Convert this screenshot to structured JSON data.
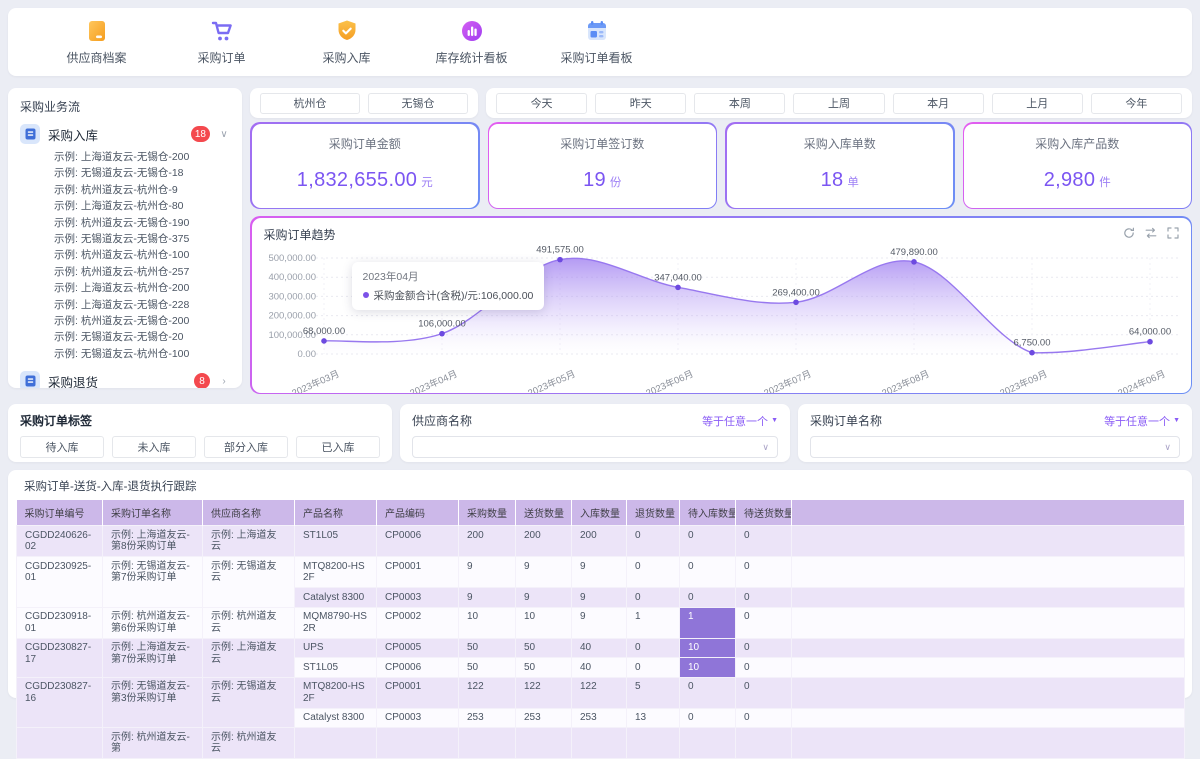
{
  "nav": {
    "items": [
      {
        "label": "供应商档案",
        "icon": "supplier-archive-folder"
      },
      {
        "label": "采购订单",
        "icon": "purchase-order-cart"
      },
      {
        "label": "采购入库",
        "icon": "inbound-shield-check"
      },
      {
        "label": "库存统计看板",
        "icon": "inventory-stats-chart"
      },
      {
        "label": "采购订单看板",
        "icon": "order-board-calendar"
      }
    ]
  },
  "sidebar": {
    "title": "采购业务流",
    "sections": [
      {
        "label": "采购入库",
        "badge": "18",
        "expanded": true,
        "items": [
          "示例: 上海道友云-无锡仓-200",
          "示例: 无锡道友云-无锡仓-18",
          "示例: 杭州道友云-杭州仓-9",
          "示例: 上海道友云-杭州仓-80",
          "示例: 杭州道友云-无锡仓-190",
          "示例: 无锡道友云-无锡仓-375",
          "示例: 杭州道友云-杭州仓-100",
          "示例: 杭州道友云-杭州仓-257",
          "示例: 上海道友云-杭州仓-200",
          "示例: 上海道友云-无锡仓-228",
          "示例: 杭州道友云-无锡仓-200",
          "示例: 无锡道友云-无锡仓-20",
          "示例: 无锡道友云-杭州仓-100"
        ]
      },
      {
        "label": "采购退货",
        "badge": "8",
        "expanded": false,
        "items": []
      }
    ]
  },
  "filters": {
    "warehouses": [
      "杭州仓",
      "无锡仓"
    ],
    "date_ranges": [
      "今天",
      "昨天",
      "本周",
      "上周",
      "本月",
      "上月",
      "今年"
    ]
  },
  "stats": [
    {
      "label": "采购订单金额",
      "value": "1,832,655.00",
      "unit": "元"
    },
    {
      "label": "采购订单签订数",
      "value": "19",
      "unit": "份"
    },
    {
      "label": "采购入库单数",
      "value": "18",
      "unit": "单"
    },
    {
      "label": "采购入库产品数",
      "value": "2,980",
      "unit": "件"
    }
  ],
  "chart": {
    "title": "采购订单趋势",
    "tooltip": {
      "title": "2023年04月",
      "text": "采购金额合计(含税)/元:106,000.00"
    },
    "toolbar_icons": [
      "refresh",
      "restore",
      "fullscreen"
    ]
  },
  "chart_data": {
    "type": "area",
    "title": "采购订单趋势",
    "x": [
      "2023年03月",
      "2023年04月",
      "2023年05月",
      "2023年06月",
      "2023年07月",
      "2023年08月",
      "2023年09月",
      "2024年06月"
    ],
    "series": [
      {
        "name": "采购金额合计(含税)/元",
        "values": [
          68000,
          106000,
          491575,
          347040,
          269400,
          479890,
          6750,
          64000
        ]
      }
    ],
    "ylim": [
      0,
      500000
    ],
    "yticks": [
      500000,
      400000,
      300000,
      200000,
      100000,
      0
    ],
    "grid": true,
    "legend": "none",
    "line_color": "#9878ef",
    "point_color": "#6d4ae0"
  },
  "tag_filter": {
    "title": "采购订单标签",
    "buttons": [
      "待入库",
      "未入库",
      "部分入库",
      "已入库"
    ]
  },
  "supplier_filter": {
    "label": "供应商名称",
    "operator": "等于任意一个",
    "value": ""
  },
  "order_filter": {
    "label": "采购订单名称",
    "operator": "等于任意一个",
    "value": ""
  },
  "table": {
    "title": "采购订单-送货-入库-退货执行跟踪",
    "headers": [
      "采购订单编号",
      "采购订单名称",
      "供应商名称",
      "产品名称",
      "产品编码",
      "采购数量",
      "送货数量",
      "入库数量",
      "退货数量",
      "待入库数量",
      "待送货数量"
    ],
    "groups": [
      {
        "order_no": "CGDD240626-02",
        "order_name": "示例: 上海道友云-第8份采购订单",
        "supplier": "示例: 上海道友云",
        "products": [
          {
            "name": "ST1L05",
            "code": "CP0006",
            "qty": [
              "200",
              "200",
              "200",
              "0",
              "0",
              "0"
            ]
          }
        ]
      },
      {
        "order_no": "CGDD230925-01",
        "order_name": "示例: 无锡道友云-第7份采购订单",
        "supplier": "示例: 无锡道友云",
        "products": [
          {
            "name": "MTQ8200-HS2F",
            "code": "CP0001",
            "qty": [
              "9",
              "9",
              "9",
              "0",
              "0",
              "0"
            ]
          },
          {
            "name": "Catalyst 8300",
            "code": "CP0003",
            "qty": [
              "9",
              "9",
              "9",
              "0",
              "0",
              "0"
            ]
          }
        ]
      },
      {
        "order_no": "CGDD230918-01",
        "order_name": "示例: 杭州道友云-第6份采购订单",
        "supplier": "示例: 杭州道友云",
        "products": [
          {
            "name": "MQM8790-HS2R",
            "code": "CP0002",
            "qty": [
              "10",
              "10",
              "9",
              "1",
              "1",
              "0"
            ]
          }
        ]
      },
      {
        "order_no": "CGDD230827-17",
        "order_name": "示例: 上海道友云-第7份采购订单",
        "supplier": "示例: 上海道友云",
        "products": [
          {
            "name": "UPS",
            "code": "CP0005",
            "qty": [
              "50",
              "50",
              "40",
              "0",
              "10",
              "0"
            ]
          },
          {
            "name": "ST1L05",
            "code": "CP0006",
            "qty": [
              "50",
              "50",
              "40",
              "0",
              "10",
              "0"
            ]
          }
        ]
      },
      {
        "order_no": "CGDD230827-16",
        "order_name": "示例: 无锡道友云-第3份采购订单",
        "supplier": "示例: 无锡道友云",
        "products": [
          {
            "name": "MTQ8200-HS2F",
            "code": "CP0001",
            "qty": [
              "122",
              "122",
              "122",
              "5",
              "0",
              "0"
            ]
          },
          {
            "name": "Catalyst 8300",
            "code": "CP0003",
            "qty": [
              "253",
              "253",
              "253",
              "13",
              "0",
              "0"
            ]
          }
        ]
      },
      {
        "order_no": "",
        "order_name": "示例: 杭州道友云-第",
        "supplier": "示例: 杭州道友云",
        "products": [
          {
            "name": "",
            "code": "",
            "qty": [
              "",
              "",
              "",
              "",
              "",
              ""
            ]
          }
        ]
      }
    ]
  }
}
